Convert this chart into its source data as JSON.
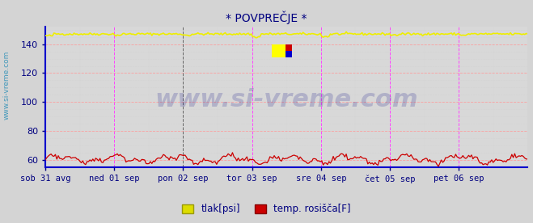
{
  "title": "* POVPREČJE *",
  "title_color": "#000080",
  "title_fontsize": 10,
  "bg_color": "#d4d4d4",
  "plot_bg_color": "#d8d8d8",
  "x_labels": [
    "sob 31 avg",
    "ned 01 sep",
    "pon 02 sep",
    "tor 03 sep",
    "sre 04 sep",
    "čet 05 sep",
    "pet 06 sep"
  ],
  "x_label_color": "#000080",
  "ylabel_left": "www.si-vreme.com",
  "ylabel_color": "#4499bb",
  "ylim": [
    55,
    152
  ],
  "yticks": [
    60,
    80,
    100,
    120,
    140
  ],
  "grid_color_major": "#ff9999",
  "grid_color_minor": "#cccccc",
  "axis_color_left": "#0000cc",
  "axis_color_bottom": "#0000cc",
  "tlak_color": "#eeee00",
  "rosisca_color": "#cc0000",
  "vline_color": "#ff44ff",
  "vline_color_dark": "#666666",
  "n_points": 336,
  "legend_tlak_color": "#dddd00",
  "legend_tlak_border": "#999900",
  "legend_rosisca_color": "#cc0000",
  "legend_rosisca_border": "#880000",
  "legend_tlak_label": "tlak[psi]",
  "legend_rosisca_label": "temp. rosišča[F]",
  "watermark": "www.si-vreme.com",
  "watermark_color": "#000080",
  "watermark_alpha": 0.18,
  "watermark_fontsize": 22,
  "logo_present": true
}
